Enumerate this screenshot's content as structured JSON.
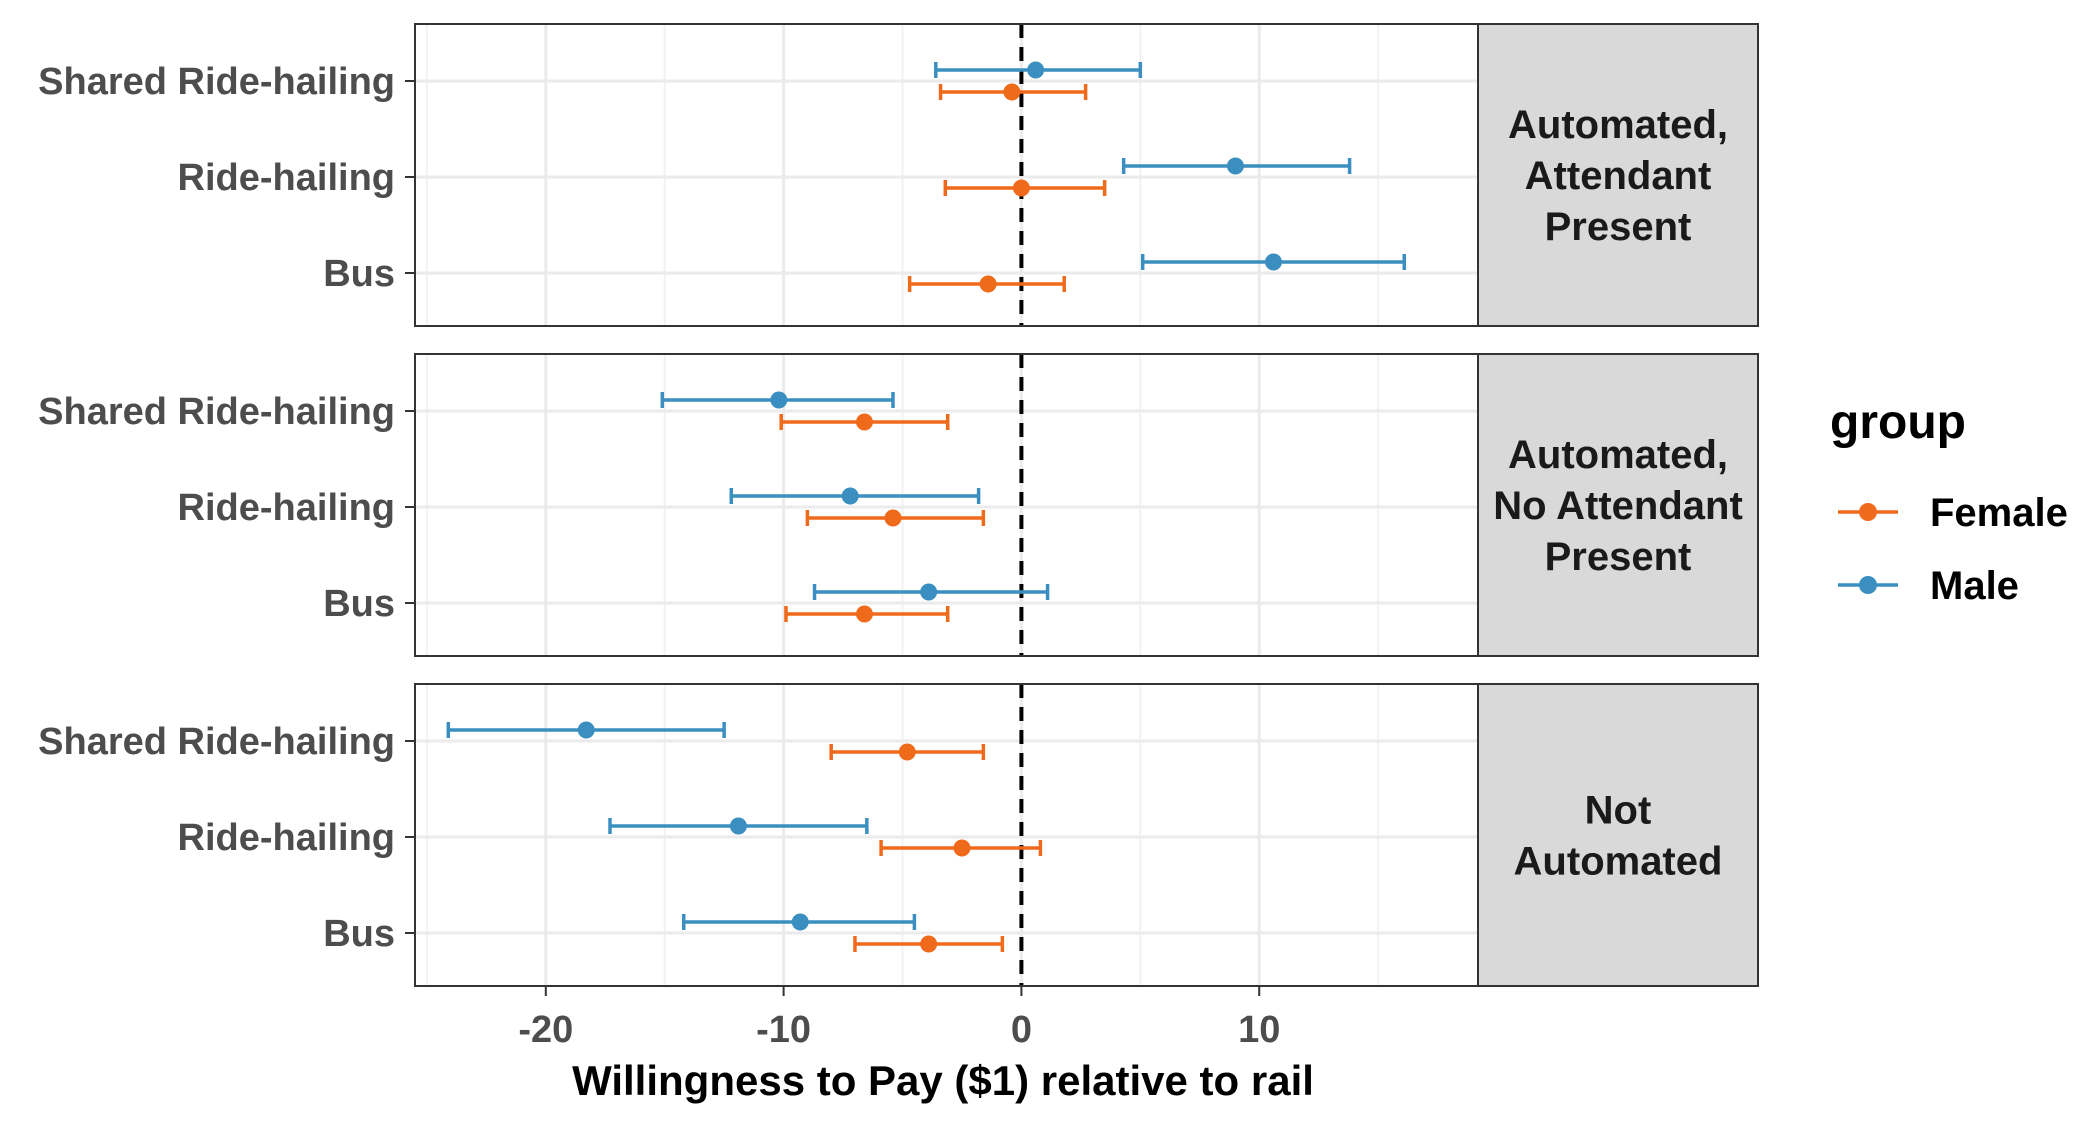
{
  "chart_data": {
    "type": "dot-errorbar",
    "xlabel": "Willingness to Pay ($1) relative to rail",
    "xlim": [
      -25.5,
      19.2
    ],
    "x_ticks": [
      -20,
      -10,
      0,
      10
    ],
    "x_tick_labels": [
      "-20",
      "-10",
      "0",
      "10"
    ],
    "categories": [
      "Shared Ride-hailing",
      "Ride-hailing",
      "Bus"
    ],
    "reference_line": 0,
    "legend": {
      "title": "group",
      "position": "right",
      "entries": [
        {
          "name": "Female",
          "color": "#ef6a1a"
        },
        {
          "name": "Male",
          "color": "#3a8fc0"
        }
      ]
    },
    "facets": [
      {
        "label": [
          "Automated,",
          "Attendant",
          "Present"
        ],
        "series": [
          {
            "name": "Male",
            "points": [
              {
                "category": "Shared Ride-hailing",
                "estimate": 0.6,
                "low": -3.6,
                "high": 5.0
              },
              {
                "category": "Ride-hailing",
                "estimate": 9.0,
                "low": 4.3,
                "high": 13.8
              },
              {
                "category": "Bus",
                "estimate": 10.6,
                "low": 5.1,
                "high": 16.1
              }
            ]
          },
          {
            "name": "Female",
            "points": [
              {
                "category": "Shared Ride-hailing",
                "estimate": -0.4,
                "low": -3.4,
                "high": 2.7
              },
              {
                "category": "Ride-hailing",
                "estimate": 0.0,
                "low": -3.2,
                "high": 3.5
              },
              {
                "category": "Bus",
                "estimate": -1.4,
                "low": -4.7,
                "high": 1.8
              }
            ]
          }
        ]
      },
      {
        "label": [
          "Automated,",
          "No Attendant",
          "Present"
        ],
        "series": [
          {
            "name": "Male",
            "points": [
              {
                "category": "Shared Ride-hailing",
                "estimate": -10.2,
                "low": -15.1,
                "high": -5.4
              },
              {
                "category": "Ride-hailing",
                "estimate": -7.2,
                "low": -12.2,
                "high": -1.8
              },
              {
                "category": "Bus",
                "estimate": -3.9,
                "low": -8.7,
                "high": 1.1
              }
            ]
          },
          {
            "name": "Female",
            "points": [
              {
                "category": "Shared Ride-hailing",
                "estimate": -6.6,
                "low": -10.1,
                "high": -3.1
              },
              {
                "category": "Ride-hailing",
                "estimate": -5.4,
                "low": -9.0,
                "high": -1.6
              },
              {
                "category": "Bus",
                "estimate": -6.6,
                "low": -9.9,
                "high": -3.1
              }
            ]
          }
        ]
      },
      {
        "label": [
          "Not",
          "Automated"
        ],
        "series": [
          {
            "name": "Male",
            "points": [
              {
                "category": "Shared Ride-hailing",
                "estimate": -18.3,
                "low": -24.1,
                "high": -12.5
              },
              {
                "category": "Ride-hailing",
                "estimate": -11.9,
                "low": -17.3,
                "high": -6.5
              },
              {
                "category": "Bus",
                "estimate": -9.3,
                "low": -14.2,
                "high": -4.5
              }
            ]
          },
          {
            "name": "Female",
            "points": [
              {
                "category": "Shared Ride-hailing",
                "estimate": -4.8,
                "low": -8.0,
                "high": -1.6
              },
              {
                "category": "Ride-hailing",
                "estimate": -2.5,
                "low": -5.9,
                "high": 0.8
              },
              {
                "category": "Bus",
                "estimate": -3.9,
                "low": -7.0,
                "high": -0.8
              }
            ]
          }
        ]
      }
    ]
  }
}
